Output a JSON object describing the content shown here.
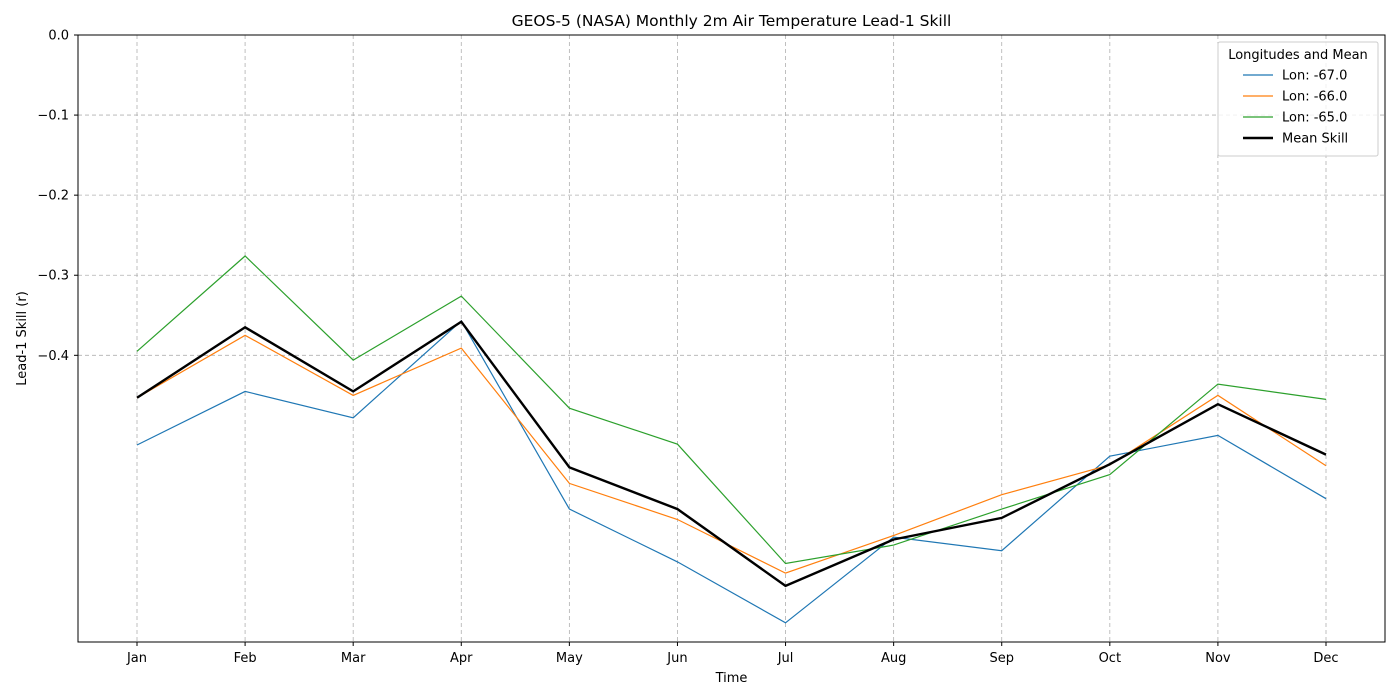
{
  "chart_data": {
    "type": "line",
    "title": "GEOS-5 (NASA) Monthly 2m Air Temperature Lead-1 Skill",
    "xlabel": "Time",
    "ylabel": "Lead-1 Skill (r)",
    "categories": [
      "Jan",
      "Feb",
      "Mar",
      "Apr",
      "May",
      "Jun",
      "Jul",
      "Aug",
      "Sep",
      "Oct",
      "Nov",
      "Dec"
    ],
    "ylim": [
      -0.758,
      0.0
    ],
    "yticks": [
      0.0,
      -0.1,
      -0.2,
      -0.3,
      -0.4
    ],
    "ytick_labels": [
      "0.0",
      "−0.1",
      "−0.2",
      "−0.3",
      "−0.4"
    ],
    "grid": true,
    "legend_title": "Longitudes and Mean",
    "legend_position": "top-right",
    "series": [
      {
        "name": "Lon: -67.0",
        "color": "#1f77b4",
        "line_width": "thin",
        "values": [
          -0.512,
          -0.445,
          -0.478,
          -0.357,
          -0.592,
          -0.658,
          -0.734,
          -0.627,
          -0.644,
          -0.526,
          -0.5,
          -0.579
        ]
      },
      {
        "name": "Lon: -66.0",
        "color": "#ff7f0e",
        "line_width": "thin",
        "values": [
          -0.453,
          -0.375,
          -0.45,
          -0.391,
          -0.56,
          -0.605,
          -0.672,
          -0.625,
          -0.574,
          -0.537,
          -0.45,
          -0.538
        ]
      },
      {
        "name": "Lon: -65.0",
        "color": "#2ca02c",
        "line_width": "thin",
        "values": [
          -0.395,
          -0.276,
          -0.406,
          -0.326,
          -0.466,
          -0.511,
          -0.66,
          -0.637,
          -0.592,
          -0.549,
          -0.436,
          -0.455
        ]
      },
      {
        "name": "Mean Skill",
        "color": "#000000",
        "line_width": "thick",
        "values": [
          -0.453,
          -0.365,
          -0.445,
          -0.358,
          -0.54,
          -0.592,
          -0.688,
          -0.63,
          -0.603,
          -0.536,
          -0.461,
          -0.524
        ]
      }
    ]
  }
}
